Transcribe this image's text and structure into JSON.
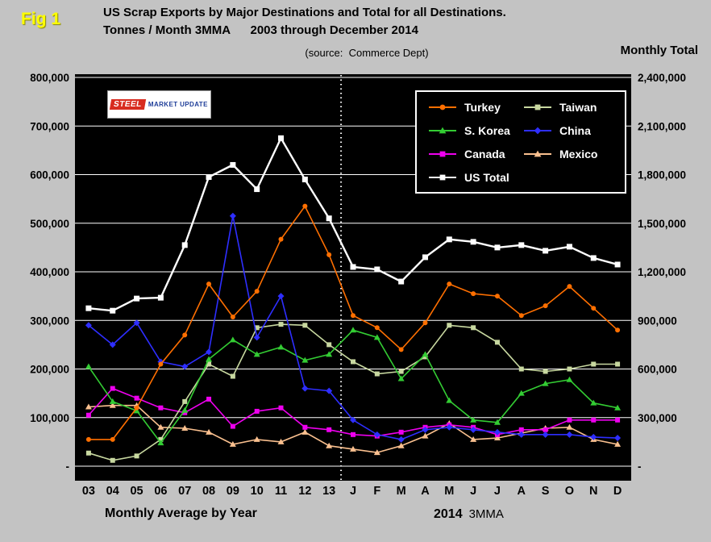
{
  "fig_label": "Fig 1",
  "title": {
    "line1": "US Scrap Exports by Major Destinations and Total for all Destinations.",
    "line2": "Tonnes / Month 3MMA      2003 through December 2014",
    "source": "(source:  Commerce Dept)"
  },
  "logo": {
    "steel": "STEEL",
    "market_update": "MARKET UPDATE"
  },
  "footer": {
    "left": "Monthly Average by Year",
    "year": "2014",
    "suffix": "3MMA"
  },
  "colors": {
    "background": "#c3c3c3",
    "plot_background": "#000000",
    "gridline": "#ffffff",
    "fig_label": "#ffff00",
    "text": "#000000",
    "legend_text": "#ffffff"
  },
  "chart_data": {
    "type": "line",
    "title": "US Scrap Exports by Major Destinations and Total for all Destinations.",
    "subtitle": "Tonnes / Month 3MMA  2003 through December 2014",
    "source": "Commerce Dept",
    "grid": "horizontal",
    "plot_background": "#000000",
    "categories": [
      "03",
      "04",
      "05",
      "06",
      "07",
      "08",
      "09",
      "10",
      "11",
      "12",
      "13",
      "J",
      "F",
      "M",
      "A",
      "M",
      "J",
      "J",
      "A",
      "S",
      "O",
      "N",
      "D"
    ],
    "divider_after_category_index": 10,
    "left_axis": {
      "min": 0,
      "max": 800000,
      "step": 100000,
      "tick_labels_top_to_bottom": [
        "800,000",
        "700,000",
        "600,000",
        "500,000",
        "400,000",
        "300,000",
        "200,000",
        "100,000",
        "-"
      ]
    },
    "right_axis": {
      "min": 0,
      "max": 2400000,
      "step": 300000,
      "title": "Monthly Total",
      "tick_labels_top_to_bottom": [
        "2,400,000",
        "2,100,000",
        "1,800,000",
        "1,500,000",
        "1,200,000",
        "900,000",
        "600,000",
        "300,000",
        "-"
      ]
    },
    "series": [
      {
        "name": "Turkey",
        "color": "#ff6f00",
        "marker": "circle",
        "axis": "left",
        "values": [
          55000,
          55000,
          120000,
          210000,
          270000,
          375000,
          307000,
          360000,
          467000,
          535000,
          435000,
          310000,
          285000,
          240000,
          295000,
          375000,
          355000,
          350000,
          310000,
          330000,
          370000,
          325000,
          280000
        ]
      },
      {
        "name": "Taiwan",
        "color": "#c8d8a0",
        "marker": "square",
        "axis": "left",
        "values": [
          27000,
          12000,
          21000,
          55000,
          133000,
          210000,
          185000,
          285000,
          292000,
          290000,
          250000,
          215000,
          190000,
          195000,
          225000,
          290000,
          285000,
          255000,
          200000,
          195000,
          200000,
          210000,
          210000
        ]
      },
      {
        "name": "S. Korea",
        "color": "#33cc33",
        "marker": "triangle",
        "axis": "left",
        "values": [
          205000,
          133000,
          114000,
          48000,
          115000,
          220000,
          260000,
          230000,
          245000,
          218000,
          230000,
          280000,
          265000,
          180000,
          230000,
          135000,
          95000,
          90000,
          150000,
          170000,
          178000,
          130000,
          120000
        ]
      },
      {
        "name": "China",
        "color": "#2e2eff",
        "marker": "diamond",
        "axis": "left",
        "values": [
          290000,
          250000,
          295000,
          215000,
          205000,
          235000,
          515000,
          265000,
          350000,
          160000,
          155000,
          95000,
          65000,
          55000,
          75000,
          80000,
          75000,
          70000,
          65000,
          65000,
          65000,
          60000,
          58000
        ]
      },
      {
        "name": "Canada",
        "color": "#ee00ee",
        "marker": "square",
        "axis": "left",
        "values": [
          105000,
          160000,
          140000,
          120000,
          110000,
          138000,
          82000,
          113000,
          120000,
          80000,
          75000,
          65000,
          62000,
          70000,
          80000,
          85000,
          80000,
          65000,
          75000,
          75000,
          95000,
          95000,
          95000
        ]
      },
      {
        "name": "Mexico",
        "color": "#fac08f",
        "marker": "triangle",
        "axis": "left",
        "values": [
          122000,
          125000,
          125000,
          80000,
          78000,
          70000,
          45000,
          55000,
          50000,
          70000,
          42000,
          35000,
          28000,
          42000,
          62000,
          88000,
          55000,
          58000,
          68000,
          78000,
          80000,
          55000,
          45000
        ]
      },
      {
        "name": "US Total",
        "color": "#ffffff",
        "marker": "square",
        "axis": "right",
        "values": [
          975000,
          960000,
          1035000,
          1040000,
          1365000,
          1785000,
          1860000,
          1710000,
          2025000,
          1770000,
          1530000,
          1230000,
          1215000,
          1140000,
          1290000,
          1400000,
          1385000,
          1350000,
          1365000,
          1330000,
          1355000,
          1285000,
          1245000
        ]
      }
    ],
    "legend_rows": [
      [
        "Turkey",
        "Taiwan"
      ],
      [
        "S. Korea",
        "China"
      ],
      [
        "Canada",
        "Mexico"
      ],
      [
        "US Total"
      ]
    ],
    "x_group_labels": {
      "left": "Monthly Average by Year",
      "right_year": "2014",
      "right_suffix": "3MMA"
    }
  }
}
